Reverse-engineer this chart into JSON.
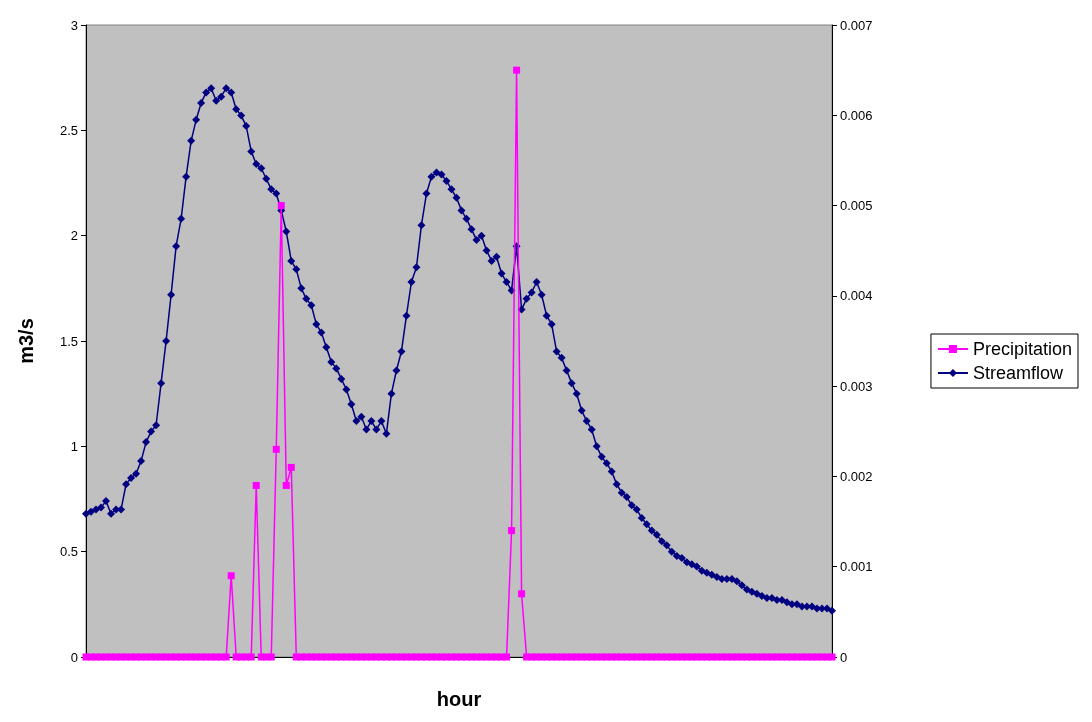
{
  "chart_data": {
    "type": "line",
    "xlabel": "hour",
    "ylabel": "m3/s",
    "categories": [
      null,
      null,
      null,
      null,
      null,
      null,
      null,
      null,
      null,
      null,
      null,
      null,
      null,
      null,
      null,
      null,
      null,
      null,
      null,
      null,
      null,
      null,
      null,
      null,
      null,
      null,
      null,
      null,
      null,
      null,
      null,
      null,
      null,
      null,
      null,
      null,
      null,
      null,
      null,
      null,
      null,
      null,
      null,
      null,
      null,
      null,
      null,
      null,
      null,
      null,
      null,
      null,
      null,
      null,
      null,
      null,
      null,
      null,
      null,
      null,
      null,
      null,
      null,
      null,
      null,
      null,
      null,
      null,
      null,
      null,
      null,
      null,
      null,
      null,
      null,
      null,
      null,
      null,
      null,
      null,
      null,
      null,
      null,
      null,
      null,
      null,
      null,
      null,
      null,
      null,
      null,
      null,
      null,
      null,
      null,
      null,
      null,
      null,
      null,
      null,
      null,
      null,
      null,
      null,
      null,
      null,
      null,
      null,
      null,
      null,
      null,
      null,
      null,
      null,
      null,
      null,
      null,
      null,
      null,
      null,
      null,
      null,
      null,
      null,
      null,
      null,
      null,
      null,
      null,
      null,
      null,
      null,
      null,
      null,
      null,
      null,
      null,
      null,
      null,
      null,
      null,
      null,
      null,
      null,
      null,
      null,
      null,
      null,
      null,
      null
    ],
    "series": [
      {
        "name": "Precipitation",
        "color": "#ff00ff",
        "axis": "y2",
        "marker": "square",
        "values": [
          0,
          0,
          0,
          0,
          0,
          0,
          0,
          0,
          0,
          0,
          0,
          0,
          0,
          0,
          0,
          0,
          0,
          0,
          0,
          0,
          0,
          0,
          0,
          0,
          0,
          0,
          0,
          0,
          0,
          0.0009,
          0,
          0,
          0,
          0,
          0.0019,
          0,
          0,
          0,
          0.0023,
          0.005,
          0.0019,
          0.0021,
          0,
          0,
          0,
          0,
          0,
          0,
          0,
          0,
          0,
          0,
          0,
          0,
          0,
          0,
          0,
          0,
          0,
          0,
          0,
          0,
          0,
          0,
          0,
          0,
          0,
          0,
          0,
          0,
          0,
          0,
          0,
          0,
          0,
          0,
          0,
          0,
          0,
          0,
          0,
          0,
          0,
          0,
          0,
          0.0014,
          0.0065,
          0.0007,
          0,
          0,
          0,
          0,
          0,
          0,
          0,
          0,
          0,
          0,
          0,
          0,
          0,
          0,
          0,
          0,
          0,
          0,
          0,
          0,
          0,
          0,
          0,
          0,
          0,
          0,
          0,
          0,
          0,
          0,
          0,
          0,
          0,
          0,
          0,
          0,
          0,
          0,
          0,
          0,
          0,
          0,
          0,
          0,
          0,
          0,
          0,
          0,
          0,
          0,
          0,
          0,
          0,
          0,
          0,
          0,
          0,
          0,
          0,
          0,
          0,
          0
        ]
      },
      {
        "name": "Streamflow",
        "color": "#000080",
        "marker": "diamond",
        "values": [
          0.68,
          0.69,
          0.7,
          0.71,
          0.74,
          0.68,
          0.7,
          0.7,
          0.82,
          0.85,
          0.87,
          0.93,
          1.02,
          1.07,
          1.1,
          1.3,
          1.5,
          1.72,
          1.95,
          2.08,
          2.28,
          2.45,
          2.55,
          2.63,
          2.68,
          2.7,
          2.64,
          2.66,
          2.7,
          2.68,
          2.6,
          2.57,
          2.52,
          2.4,
          2.34,
          2.32,
          2.27,
          2.22,
          2.2,
          2.12,
          2.02,
          1.88,
          1.84,
          1.75,
          1.7,
          1.67,
          1.58,
          1.54,
          1.47,
          1.4,
          1.37,
          1.32,
          1.27,
          1.2,
          1.12,
          1.14,
          1.08,
          1.12,
          1.08,
          1.12,
          1.06,
          1.25,
          1.36,
          1.45,
          1.62,
          1.78,
          1.85,
          2.05,
          2.2,
          2.28,
          2.3,
          2.29,
          2.26,
          2.22,
          2.18,
          2.12,
          2.08,
          2.03,
          1.98,
          2.0,
          1.93,
          1.88,
          1.9,
          1.82,
          1.78,
          1.74,
          1.95,
          1.65,
          1.7,
          1.73,
          1.78,
          1.72,
          1.62,
          1.58,
          1.45,
          1.42,
          1.36,
          1.3,
          1.25,
          1.17,
          1.12,
          1.08,
          1.0,
          0.95,
          0.92,
          0.88,
          0.82,
          0.78,
          0.76,
          0.72,
          0.7,
          0.66,
          0.63,
          0.6,
          0.58,
          0.55,
          0.53,
          0.5,
          0.48,
          0.47,
          0.45,
          0.44,
          0.43,
          0.41,
          0.4,
          0.39,
          0.38,
          0.37,
          0.37,
          0.37,
          0.36,
          0.34,
          0.32,
          0.31,
          0.3,
          0.29,
          0.28,
          0.28,
          0.27,
          0.27,
          0.26,
          0.25,
          0.25,
          0.24,
          0.24,
          0.24,
          0.23,
          0.23,
          0.23,
          0.22
        ]
      }
    ],
    "ylim": [
      0,
      3
    ],
    "yticks": [
      0,
      0.5,
      1,
      1.5,
      2,
      2.5,
      3
    ],
    "y2lim": [
      0,
      0.007
    ],
    "y2ticks": [
      0,
      0.001,
      0.002,
      0.003,
      0.004,
      0.005,
      0.006,
      0.007
    ],
    "tick_labels": "y",
    "grid": false,
    "legend": "right"
  }
}
